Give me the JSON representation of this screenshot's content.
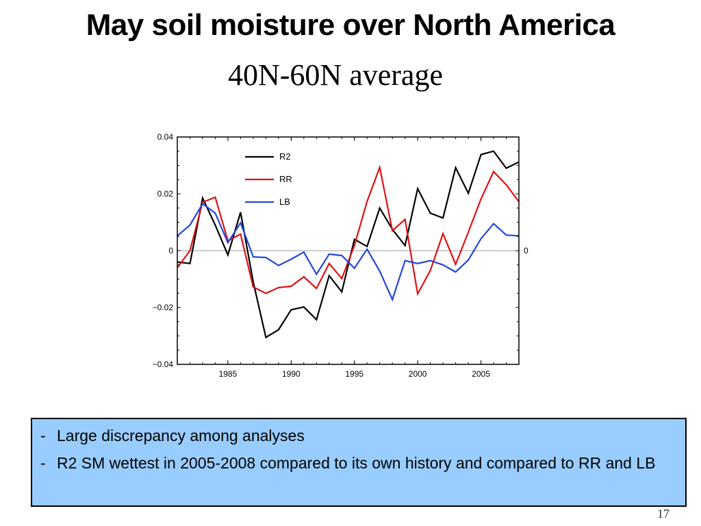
{
  "slide": {
    "title": "May soil moisture over North America",
    "subtitle": "40N-60N average",
    "page_number": "17"
  },
  "notes": [
    {
      "bullet": "-",
      "text": "Large discrepancy among analyses"
    },
    {
      "bullet": "-",
      "text": "R2 SM wettest in 2005-2008 compared to its own history and compared to RR and LB"
    }
  ],
  "colors": {
    "R2": "#000000",
    "RR": "#dd1111",
    "LB": "#2244dd",
    "zero_line": "#999999",
    "notes_bg": "#99ccff"
  },
  "chart_data": {
    "type": "line",
    "x": [
      1981,
      1982,
      1983,
      1984,
      1985,
      1986,
      1987,
      1988,
      1989,
      1990,
      1991,
      1992,
      1993,
      1994,
      1995,
      1996,
      1997,
      1998,
      1999,
      2000,
      2001,
      2002,
      2003,
      2004,
      2005,
      2006,
      2007,
      2008
    ],
    "series": [
      {
        "name": "R2",
        "values": [
          -0.004,
          -0.0045,
          0.0185,
          0.009,
          -0.0015,
          0.0135,
          -0.011,
          -0.0305,
          -0.0278,
          -0.0208,
          -0.0198,
          -0.0243,
          -0.0088,
          -0.0145,
          0.004,
          0.0015,
          0.015,
          0.0075,
          0.0018,
          0.0218,
          0.0132,
          0.0115,
          0.0292,
          0.0202,
          0.0338,
          0.035,
          0.029,
          0.0312
        ]
      },
      {
        "name": "RR",
        "values": [
          -0.006,
          0.0,
          0.017,
          0.0188,
          0.0035,
          0.0058,
          -0.0128,
          -0.015,
          -0.013,
          -0.0125,
          -0.0092,
          -0.0133,
          -0.0045,
          -0.0098,
          0.0018,
          0.0173,
          0.0293,
          0.007,
          0.011,
          -0.0152,
          -0.007,
          0.006,
          -0.0048,
          0.0065,
          0.0182,
          0.0278,
          0.0232,
          0.0172
        ]
      },
      {
        "name": "LB",
        "values": [
          0.0052,
          0.009,
          0.0165,
          0.0132,
          0.0028,
          0.0098,
          -0.0022,
          -0.0024,
          -0.0052,
          -0.003,
          -0.0005,
          -0.0083,
          -0.0012,
          -0.0017,
          -0.0062,
          0.0005,
          -0.0072,
          -0.0172,
          -0.0035,
          -0.0045,
          -0.0035,
          -0.005,
          -0.0075,
          -0.0033,
          0.0042,
          0.0095,
          0.0055,
          0.0052
        ]
      }
    ],
    "xlim": [
      1981,
      2008
    ],
    "ylim": [
      -0.04,
      0.04
    ],
    "xticks": [
      1985,
      1990,
      1995,
      2000,
      2005
    ],
    "xtick_labels": [
      "1985",
      "1990",
      "1995",
      "2000",
      "2005"
    ],
    "yticks": [
      -0.04,
      -0.02,
      0,
      0.02,
      0.04
    ],
    "ytick_labels": [
      "−0.04",
      "−0.02",
      "0",
      "0.02",
      "0.04"
    ],
    "right_label": "0",
    "legend": [
      "R2",
      "RR",
      "LB"
    ],
    "legend_placement": "top-left",
    "grid": false
  }
}
